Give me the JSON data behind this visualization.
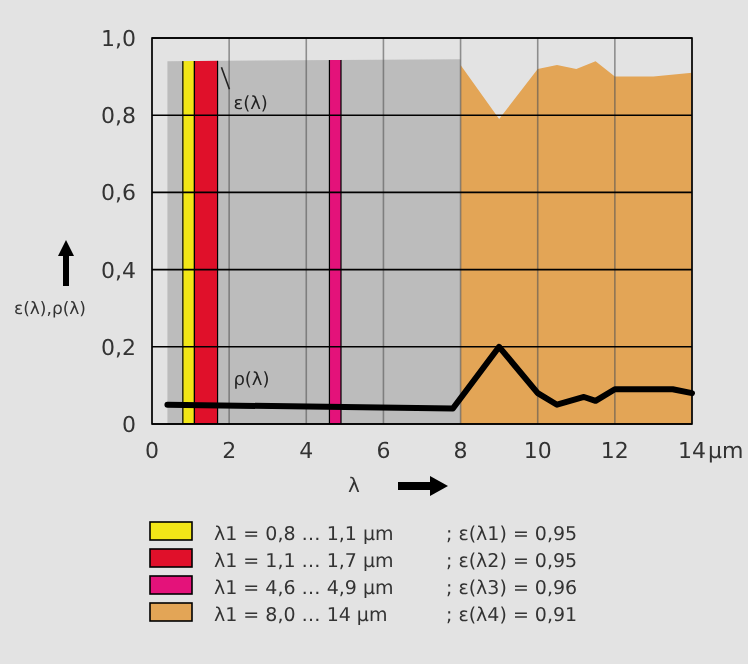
{
  "chart_data": {
    "type": "area",
    "xlabel": "λ",
    "ylabel": "ε(λ),ρ(λ)",
    "xlim": [
      0,
      14
    ],
    "xticks": [
      0,
      2,
      4,
      6,
      8,
      10,
      12,
      14
    ],
    "ylim": [
      0,
      1
    ],
    "yticks": [
      {
        "value": 0,
        "label": "0"
      },
      {
        "value": 0.2,
        "label": "0,2"
      },
      {
        "value": 0.4,
        "label": "0,4"
      },
      {
        "value": 0.6,
        "label": "0,6"
      },
      {
        "value": 0.8,
        "label": "0,8"
      },
      {
        "value": 1,
        "label": "1,0"
      }
    ],
    "grid": true,
    "legend": "bottom",
    "series": [
      {
        "name": "ε(λ)",
        "color": "#bcbcbc",
        "x": [
          0.4,
          8
        ],
        "values": [
          0.94,
          0.945
        ]
      },
      {
        "name": "λ1 = 8,0 … 14 µm",
        "color": "#e3a556",
        "x": [
          8,
          9,
          10,
          10.5,
          11,
          11.5,
          12,
          13,
          14
        ],
        "values": [
          0.93,
          0.79,
          0.92,
          0.93,
          0.92,
          0.94,
          0.9,
          0.9,
          0.91
        ]
      },
      {
        "name": "ρ(λ)",
        "type": "line",
        "color": "#000000",
        "x": [
          0.4,
          7.8,
          9,
          10,
          10.5,
          11.2,
          11.5,
          12,
          13.5,
          14
        ],
        "values": [
          0.05,
          0.04,
          0.2,
          0.08,
          0.05,
          0.07,
          0.06,
          0.09,
          0.09,
          0.08
        ]
      }
    ],
    "bands": [
      {
        "axis": "x",
        "from": 0.8,
        "to": 1.1,
        "color": "#f2e617",
        "label": "λ1 = 0,8 … 1,1 µm"
      },
      {
        "axis": "x",
        "from": 1.1,
        "to": 1.7,
        "color": "#e0102a",
        "label": "λ1 = 1,1 … 1,7 µm"
      },
      {
        "axis": "x",
        "from": 4.6,
        "to": 4.9,
        "color": "#e4127a",
        "label": "λ1 = 4,6 … 4,9 µm"
      }
    ],
    "annotations": [
      "; ε(λ1) = 0,95",
      "; ε(λ2) = 0,95",
      "; ε(λ3) = 0,96",
      "; ε(λ4) = 0,91",
      "µm"
    ]
  }
}
